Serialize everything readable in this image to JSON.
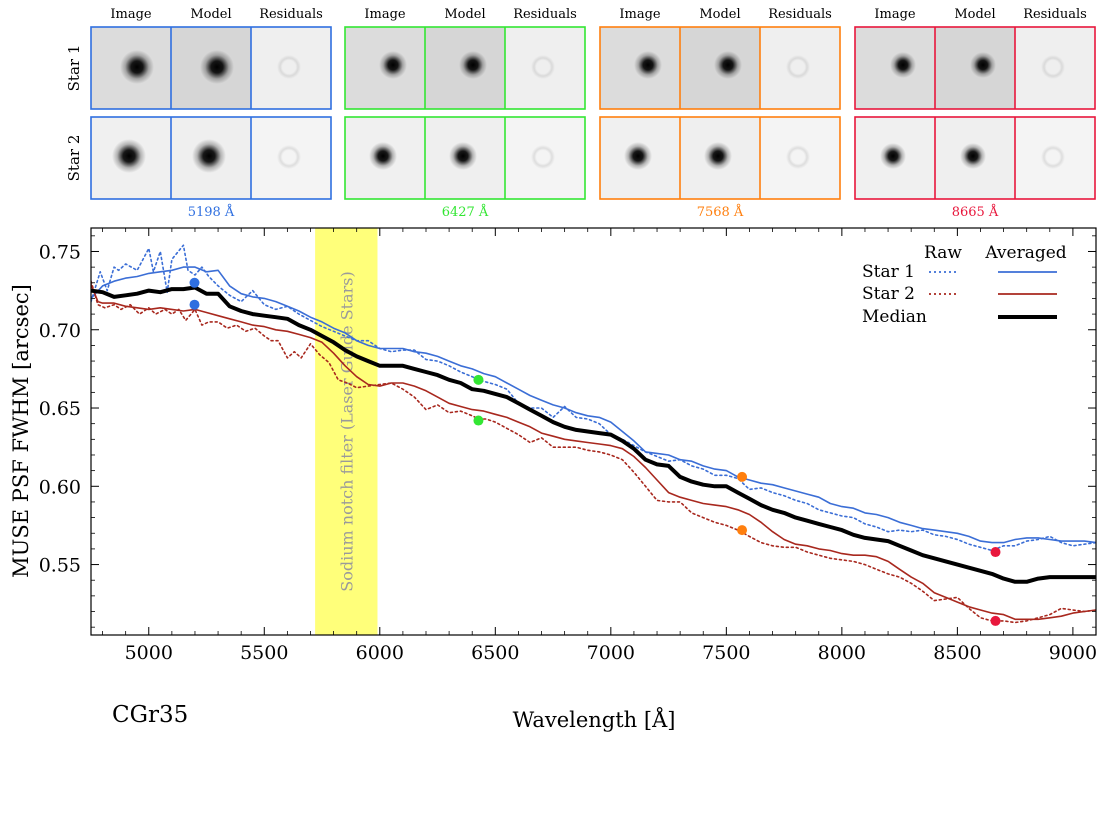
{
  "panels": {
    "column_titles": [
      "Image",
      "Model",
      "Residuals"
    ],
    "row_labels": [
      "Star 1",
      "Star 2"
    ],
    "groups": [
      {
        "wavelength_label": "5198 Å",
        "color": "#2f6fe0"
      },
      {
        "wavelength_label": "6427 Å",
        "color": "#33e633"
      },
      {
        "wavelength_label": "7568 Å",
        "color": "#ff7f0e"
      },
      {
        "wavelength_label": "8665 Å",
        "color": "#e8173c"
      }
    ]
  },
  "chart_data": {
    "type": "line",
    "xlabel": "Wavelength [Å]",
    "ylabel": "MUSE PSF FWHM [arcsec]",
    "xlim": [
      4750,
      9100
    ],
    "ylim": [
      0.505,
      0.765
    ],
    "xticks": [
      5000,
      5500,
      6000,
      6500,
      7000,
      7500,
      8000,
      8500,
      9000
    ],
    "yticks": [
      0.55,
      0.6,
      0.65,
      0.7,
      0.75
    ],
    "ytick_labels": [
      "0.55",
      "0.60",
      "0.65",
      "0.70",
      "0.75"
    ],
    "annotation": "CGr35",
    "shaded_band": {
      "x": [
        5720,
        5990
      ],
      "label": "Sodium notch filter (Laser Guide Stars)",
      "color": "#ffff7a"
    },
    "legend": {
      "placement": "top-right",
      "header_raw": "Raw",
      "header_avg": "Averaged",
      "entries": [
        "Star 1",
        "Star 2",
        "Median"
      ]
    },
    "series": [
      {
        "name": "Star 1",
        "style": "raw",
        "color": "#3b6ed6",
        "x": [
          4750,
          4790,
          4820,
          4850,
          4870,
          4900,
          4950,
          5000,
          5020,
          5050,
          5080,
          5100,
          5150,
          5170,
          5200,
          5230,
          5260,
          5300,
          5350,
          5400,
          5450,
          5500,
          5550,
          5600,
          5650,
          5700,
          5750,
          5800,
          5850,
          5900,
          5950,
          6000,
          6050,
          6100,
          6150,
          6200,
          6250,
          6300,
          6350,
          6400,
          6430,
          6450,
          6500,
          6550,
          6600,
          6650,
          6700,
          6750,
          6800,
          6850,
          6900,
          6950,
          7000,
          7050,
          7100,
          7150,
          7200,
          7250,
          7300,
          7350,
          7400,
          7450,
          7500,
          7550,
          7600,
          7650,
          7700,
          7750,
          7800,
          7850,
          7900,
          7950,
          8000,
          8050,
          8100,
          8150,
          8200,
          8250,
          8300,
          8350,
          8400,
          8450,
          8500,
          8550,
          8600,
          8650,
          8700,
          8750,
          8800,
          8850,
          8900,
          8950,
          9000,
          9050,
          9100
        ],
        "y": [
          0.718,
          0.737,
          0.725,
          0.74,
          0.738,
          0.742,
          0.738,
          0.752,
          0.737,
          0.75,
          0.724,
          0.745,
          0.754,
          0.738,
          0.735,
          0.74,
          0.734,
          0.728,
          0.722,
          0.718,
          0.725,
          0.716,
          0.713,
          0.715,
          0.71,
          0.706,
          0.702,
          0.699,
          0.696,
          0.693,
          0.693,
          0.688,
          0.686,
          0.687,
          0.687,
          0.681,
          0.68,
          0.677,
          0.673,
          0.67,
          0.668,
          0.667,
          0.665,
          0.662,
          0.653,
          0.65,
          0.65,
          0.644,
          0.651,
          0.644,
          0.643,
          0.64,
          0.633,
          0.63,
          0.626,
          0.622,
          0.619,
          0.616,
          0.617,
          0.613,
          0.611,
          0.607,
          0.607,
          0.605,
          0.598,
          0.599,
          0.596,
          0.594,
          0.591,
          0.589,
          0.585,
          0.583,
          0.581,
          0.58,
          0.576,
          0.574,
          0.571,
          0.572,
          0.571,
          0.572,
          0.569,
          0.568,
          0.566,
          0.563,
          0.561,
          0.559,
          0.562,
          0.562,
          0.565,
          0.566,
          0.568,
          0.564,
          0.562,
          0.563,
          0.564
        ]
      },
      {
        "name": "Star 1",
        "style": "averaged",
        "color": "#3b6ed6",
        "x": [
          4750,
          4800,
          4850,
          4900,
          4950,
          5000,
          5050,
          5100,
          5150,
          5200,
          5250,
          5300,
          5350,
          5400,
          5450,
          5500,
          5550,
          5600,
          5650,
          5700,
          5750,
          5800,
          5850,
          5900,
          5950,
          6000,
          6050,
          6100,
          6150,
          6200,
          6250,
          6300,
          6350,
          6400,
          6450,
          6500,
          6550,
          6600,
          6650,
          6700,
          6750,
          6800,
          6850,
          6900,
          6950,
          7000,
          7050,
          7100,
          7150,
          7200,
          7250,
          7300,
          7350,
          7400,
          7450,
          7500,
          7550,
          7600,
          7650,
          7700,
          7750,
          7800,
          7850,
          7900,
          7950,
          8000,
          8050,
          8100,
          8150,
          8200,
          8250,
          8300,
          8350,
          8400,
          8450,
          8500,
          8550,
          8600,
          8650,
          8700,
          8750,
          8800,
          8850,
          8900,
          8950,
          9000,
          9050,
          9100
        ],
        "y": [
          0.72,
          0.728,
          0.731,
          0.733,
          0.734,
          0.736,
          0.737,
          0.738,
          0.74,
          0.74,
          0.737,
          0.738,
          0.728,
          0.723,
          0.721,
          0.72,
          0.718,
          0.715,
          0.712,
          0.708,
          0.705,
          0.701,
          0.698,
          0.693,
          0.69,
          0.688,
          0.688,
          0.688,
          0.686,
          0.685,
          0.683,
          0.68,
          0.677,
          0.675,
          0.672,
          0.67,
          0.666,
          0.662,
          0.658,
          0.655,
          0.652,
          0.65,
          0.647,
          0.645,
          0.644,
          0.641,
          0.635,
          0.629,
          0.622,
          0.621,
          0.62,
          0.617,
          0.616,
          0.613,
          0.611,
          0.61,
          0.606,
          0.604,
          0.602,
          0.601,
          0.599,
          0.597,
          0.595,
          0.593,
          0.589,
          0.587,
          0.586,
          0.583,
          0.582,
          0.58,
          0.577,
          0.575,
          0.573,
          0.572,
          0.571,
          0.57,
          0.568,
          0.565,
          0.564,
          0.564,
          0.566,
          0.567,
          0.567,
          0.566,
          0.565,
          0.565,
          0.565,
          0.564
        ]
      },
      {
        "name": "Star 2",
        "style": "raw",
        "color": "#a8281e",
        "x": [
          4750,
          4780,
          4810,
          4850,
          4880,
          4920,
          4960,
          5000,
          5030,
          5070,
          5100,
          5130,
          5160,
          5200,
          5230,
          5260,
          5300,
          5340,
          5380,
          5420,
          5460,
          5500,
          5530,
          5560,
          5600,
          5630,
          5660,
          5700,
          5740,
          5780,
          5820,
          5860,
          5900,
          5950,
          6000,
          6050,
          6100,
          6150,
          6200,
          6250,
          6300,
          6350,
          6400,
          6430,
          6460,
          6500,
          6550,
          6600,
          6650,
          6700,
          6750,
          6800,
          6850,
          6900,
          6950,
          7000,
          7050,
          7100,
          7150,
          7200,
          7250,
          7300,
          7350,
          7400,
          7450,
          7500,
          7550,
          7600,
          7650,
          7700,
          7750,
          7800,
          7850,
          7900,
          7950,
          8000,
          8050,
          8100,
          8150,
          8200,
          8250,
          8300,
          8350,
          8400,
          8450,
          8500,
          8550,
          8600,
          8650,
          8700,
          8750,
          8800,
          8850,
          8900,
          8950,
          9000,
          9050,
          9100
        ],
        "y": [
          0.731,
          0.716,
          0.714,
          0.716,
          0.713,
          0.716,
          0.71,
          0.714,
          0.71,
          0.713,
          0.71,
          0.713,
          0.706,
          0.713,
          0.703,
          0.705,
          0.705,
          0.701,
          0.703,
          0.699,
          0.701,
          0.696,
          0.693,
          0.693,
          0.682,
          0.686,
          0.682,
          0.691,
          0.684,
          0.679,
          0.668,
          0.666,
          0.663,
          0.664,
          0.665,
          0.666,
          0.662,
          0.657,
          0.649,
          0.652,
          0.647,
          0.648,
          0.645,
          0.643,
          0.643,
          0.641,
          0.637,
          0.633,
          0.628,
          0.631,
          0.625,
          0.625,
          0.625,
          0.623,
          0.622,
          0.62,
          0.617,
          0.609,
          0.6,
          0.591,
          0.59,
          0.59,
          0.583,
          0.58,
          0.577,
          0.575,
          0.572,
          0.568,
          0.564,
          0.562,
          0.561,
          0.561,
          0.558,
          0.556,
          0.554,
          0.553,
          0.552,
          0.55,
          0.547,
          0.544,
          0.542,
          0.538,
          0.533,
          0.527,
          0.528,
          0.529,
          0.522,
          0.516,
          0.514,
          0.514,
          0.513,
          0.514,
          0.516,
          0.518,
          0.522,
          0.521,
          0.52,
          0.521
        ]
      },
      {
        "name": "Star 2",
        "style": "averaged",
        "color": "#a8281e",
        "x": [
          4750,
          4780,
          4800,
          4850,
          4900,
          4950,
          5000,
          5050,
          5100,
          5150,
          5200,
          5250,
          5300,
          5350,
          5400,
          5450,
          5500,
          5550,
          5600,
          5650,
          5700,
          5750,
          5800,
          5850,
          5900,
          5950,
          6000,
          6050,
          6100,
          6150,
          6200,
          6250,
          6300,
          6350,
          6400,
          6450,
          6500,
          6550,
          6600,
          6650,
          6700,
          6750,
          6800,
          6850,
          6900,
          6950,
          7000,
          7050,
          7100,
          7150,
          7200,
          7250,
          7300,
          7350,
          7400,
          7450,
          7500,
          7550,
          7600,
          7650,
          7700,
          7750,
          7800,
          7850,
          7900,
          7950,
          8000,
          8050,
          8100,
          8150,
          8200,
          8250,
          8300,
          8350,
          8400,
          8450,
          8500,
          8550,
          8600,
          8650,
          8700,
          8750,
          8800,
          8850,
          8900,
          8950,
          9000,
          9050,
          9100
        ],
        "y": [
          0.729,
          0.718,
          0.717,
          0.717,
          0.715,
          0.714,
          0.713,
          0.714,
          0.713,
          0.712,
          0.713,
          0.711,
          0.709,
          0.707,
          0.705,
          0.703,
          0.702,
          0.7,
          0.699,
          0.697,
          0.695,
          0.692,
          0.685,
          0.677,
          0.67,
          0.665,
          0.664,
          0.666,
          0.666,
          0.664,
          0.661,
          0.657,
          0.653,
          0.651,
          0.649,
          0.648,
          0.646,
          0.644,
          0.641,
          0.638,
          0.634,
          0.632,
          0.63,
          0.629,
          0.628,
          0.627,
          0.626,
          0.624,
          0.619,
          0.612,
          0.604,
          0.596,
          0.593,
          0.591,
          0.589,
          0.588,
          0.587,
          0.585,
          0.582,
          0.577,
          0.571,
          0.566,
          0.563,
          0.562,
          0.56,
          0.559,
          0.557,
          0.556,
          0.556,
          0.555,
          0.552,
          0.547,
          0.542,
          0.538,
          0.532,
          0.529,
          0.526,
          0.523,
          0.521,
          0.519,
          0.518,
          0.515,
          0.515,
          0.515,
          0.516,
          0.517,
          0.519,
          0.52,
          0.521
        ]
      },
      {
        "name": "Median",
        "style": "averaged",
        "color": "#000000",
        "x": [
          4750,
          4800,
          4850,
          4900,
          4950,
          5000,
          5050,
          5100,
          5150,
          5200,
          5250,
          5300,
          5350,
          5400,
          5450,
          5500,
          5550,
          5600,
          5650,
          5700,
          5750,
          5800,
          5850,
          5900,
          5950,
          6000,
          6050,
          6100,
          6150,
          6200,
          6250,
          6300,
          6350,
          6400,
          6450,
          6500,
          6550,
          6600,
          6650,
          6700,
          6750,
          6800,
          6850,
          6900,
          6950,
          7000,
          7050,
          7100,
          7150,
          7200,
          7250,
          7300,
          7350,
          7400,
          7450,
          7500,
          7550,
          7600,
          7650,
          7700,
          7750,
          7800,
          7850,
          7900,
          7950,
          8000,
          8050,
          8100,
          8150,
          8200,
          8250,
          8300,
          8350,
          8400,
          8450,
          8500,
          8550,
          8600,
          8650,
          8700,
          8750,
          8800,
          8850,
          8900,
          8950,
          9000,
          9050,
          9100
        ],
        "y": [
          0.725,
          0.724,
          0.721,
          0.722,
          0.723,
          0.725,
          0.724,
          0.726,
          0.726,
          0.727,
          0.723,
          0.723,
          0.715,
          0.712,
          0.71,
          0.709,
          0.708,
          0.707,
          0.703,
          0.7,
          0.696,
          0.692,
          0.687,
          0.683,
          0.68,
          0.677,
          0.677,
          0.677,
          0.675,
          0.673,
          0.671,
          0.668,
          0.666,
          0.662,
          0.661,
          0.659,
          0.657,
          0.653,
          0.649,
          0.645,
          0.641,
          0.638,
          0.636,
          0.635,
          0.634,
          0.633,
          0.629,
          0.624,
          0.617,
          0.614,
          0.613,
          0.606,
          0.603,
          0.601,
          0.6,
          0.6,
          0.596,
          0.592,
          0.588,
          0.585,
          0.583,
          0.58,
          0.578,
          0.576,
          0.574,
          0.572,
          0.569,
          0.567,
          0.566,
          0.565,
          0.562,
          0.559,
          0.556,
          0.554,
          0.552,
          0.55,
          0.548,
          0.546,
          0.544,
          0.541,
          0.539,
          0.539,
          0.541,
          0.542,
          0.542,
          0.542,
          0.542,
          0.542
        ]
      }
    ],
    "markers": [
      {
        "x": 5198,
        "y": 0.73,
        "color": "#2f6fe0"
      },
      {
        "x": 5198,
        "y": 0.716,
        "color": "#2f6fe0"
      },
      {
        "x": 6427,
        "y": 0.668,
        "color": "#33e633"
      },
      {
        "x": 6427,
        "y": 0.642,
        "color": "#33e633"
      },
      {
        "x": 7568,
        "y": 0.606,
        "color": "#ff7f0e"
      },
      {
        "x": 7568,
        "y": 0.572,
        "color": "#ff7f0e"
      },
      {
        "x": 8665,
        "y": 0.558,
        "color": "#e8173c"
      },
      {
        "x": 8665,
        "y": 0.514,
        "color": "#e8173c"
      }
    ]
  }
}
